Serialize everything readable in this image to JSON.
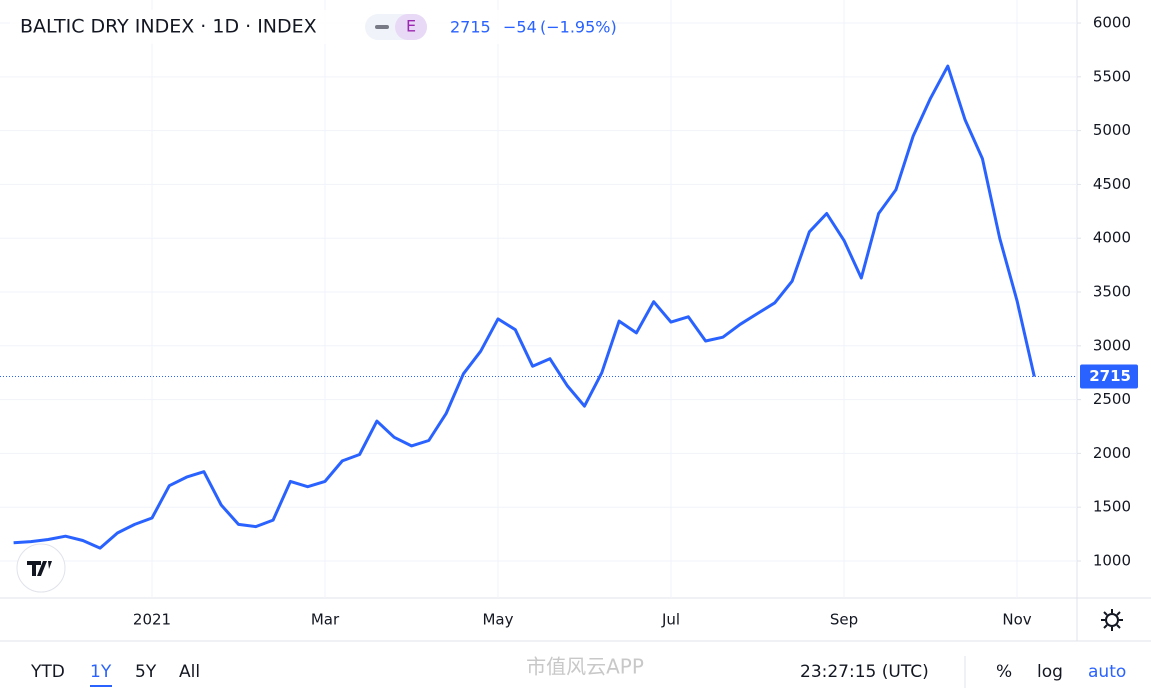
{
  "chart_data": {
    "type": "line",
    "title": "BALTIC DRY INDEX · 1D · INDEX",
    "badge": "E",
    "change": "−54",
    "change_pct": "(−1.95%)",
    "color": "#2962ff",
    "categories": [
      null,
      null,
      null,
      null,
      null,
      null,
      null,
      null,
      "2021",
      null,
      null,
      null,
      null,
      null,
      null,
      null,
      null,
      null,
      "Mar",
      null,
      null,
      null,
      null,
      null,
      null,
      null,
      null,
      null,
      "May",
      null,
      null,
      null,
      null,
      null,
      null,
      null,
      null,
      null,
      "Jul",
      null,
      null,
      null,
      null,
      null,
      null,
      null,
      null,
      null,
      "Sep",
      null,
      null,
      null,
      null,
      null,
      null,
      null,
      null,
      null,
      "Nov",
      null
    ],
    "values": [
      1170,
      1180,
      1200,
      1230,
      1190,
      1120,
      1260,
      1340,
      1400,
      1700,
      1780,
      1830,
      1520,
      1340,
      1320,
      1380,
      1740,
      1690,
      1740,
      1930,
      1990,
      2300,
      2150,
      2070,
      2120,
      2370,
      2740,
      2950,
      3250,
      3150,
      2810,
      2880,
      2630,
      2440,
      2750,
      3230,
      3120,
      3410,
      3220,
      3270,
      3045,
      3080,
      3200,
      3300,
      3400,
      3600,
      4060,
      4230,
      3980,
      3630,
      4230,
      4450,
      4950,
      5300,
      5600,
      5100,
      4740,
      4000,
      3420,
      2715
    ],
    "ylim": [
      656,
      6214
    ],
    "yticks": [
      1000,
      1500,
      2000,
      2500,
      3000,
      3500,
      4000,
      4500,
      5000,
      5500,
      6000
    ],
    "grid": true
  },
  "toolbar": {
    "ranges": [
      "YTD",
      "1Y",
      "5Y",
      "All"
    ],
    "time": "23:27:15 (UTC)",
    "percent": "%",
    "log": "log",
    "auto": "auto"
  },
  "watermark": "市值风云APP"
}
